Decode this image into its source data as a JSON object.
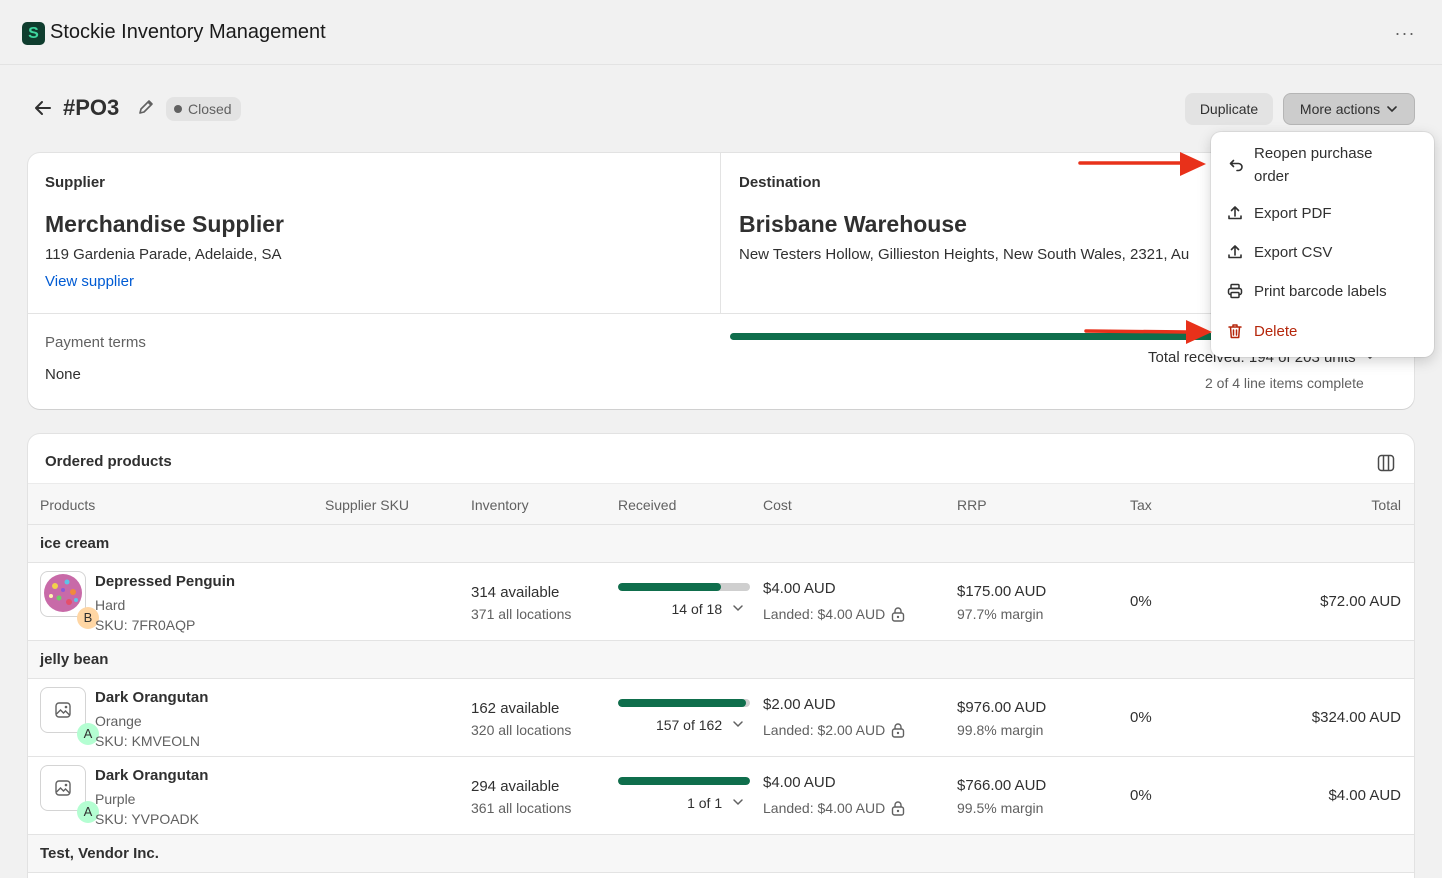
{
  "app": {
    "title": "Stockie Inventory Management",
    "logo_letter": "S",
    "menu_glyph": "···"
  },
  "header": {
    "po_number": "#PO3",
    "status": "Closed",
    "duplicate_label": "Duplicate",
    "more_actions_label": "More actions"
  },
  "supplier": {
    "heading": "Supplier",
    "name": "Merchandise Supplier",
    "address": "119 Gardenia Parade, Adelaide, SA",
    "link": "View supplier"
  },
  "destination": {
    "heading": "Destination",
    "name": "Brisbane Warehouse",
    "address": "New Testers Hollow, Gillieston Heights, New South Wales, 2321, Au"
  },
  "payment": {
    "heading": "Payment terms",
    "value": "None"
  },
  "receiving": {
    "total_received": "Total received: 194 of 203 units",
    "lines_complete": "2 of 4 line items complete",
    "progress": 0.956
  },
  "products": {
    "heading": "Ordered products",
    "columns": [
      "Products",
      "Supplier SKU",
      "Inventory",
      "Received",
      "Cost",
      "RRP",
      "Tax",
      "Total"
    ],
    "groups": [
      {
        "label": "ice cream"
      },
      {
        "label": "jelly bean"
      },
      {
        "label": "Test, Vendor Inc."
      }
    ],
    "rows": [
      {
        "name": "Depressed Penguin",
        "variant": "Hard",
        "sku": "SKU: 7FR0AQP",
        "badge": "B",
        "badge_color": "#ffd6a4",
        "available": "314 available",
        "all_locations": "371 all locations",
        "received_text": "14 of 18",
        "received_fraction": 0.78,
        "cost": "$4.00 AUD",
        "landed": "Landed: $4.00 AUD",
        "rrp": "$175.00 AUD",
        "margin": "97.7% margin",
        "tax": "0%",
        "total": "$72.00 AUD"
      },
      {
        "name": "Dark Orangutan",
        "variant": "Orange",
        "sku": "SKU: KMVEOLN",
        "badge": "A",
        "badge_color": "#b4fed2",
        "available": "162 available",
        "all_locations": "320 all locations",
        "received_text": "157 of 162",
        "received_fraction": 0.97,
        "cost": "$2.00 AUD",
        "landed": "Landed: $2.00 AUD",
        "rrp": "$976.00 AUD",
        "margin": "99.8% margin",
        "tax": "0%",
        "total": "$324.00 AUD"
      },
      {
        "name": "Dark Orangutan",
        "variant": "Purple",
        "sku": "SKU: YVPOADK",
        "badge": "A",
        "badge_color": "#b4fed2",
        "available": "294 available",
        "all_locations": "361 all locations",
        "received_text": "1 of 1",
        "received_fraction": 1.0,
        "cost": "$4.00 AUD",
        "landed": "Landed: $4.00 AUD",
        "rrp": "$766.00 AUD",
        "margin": "99.5% margin",
        "tax": "0%",
        "total": "$4.00 AUD"
      }
    ]
  },
  "menu": {
    "reopen_line1": "Reopen purchase",
    "reopen_line2": "order",
    "export_pdf": "Export PDF",
    "export_csv": "Export CSV",
    "print_labels": "Print barcode labels",
    "delete": "Delete"
  },
  "colors": {
    "accent_green": "#0f6e4c",
    "danger": "#b5260b",
    "link": "#005bd3",
    "arrow": "#e8311a"
  },
  "icons": [
    "back-arrow-icon",
    "pencil-icon",
    "chevron-down-icon",
    "columns-icon",
    "lock-icon",
    "reopen-icon",
    "upload-icon",
    "printer-icon",
    "trash-icon",
    "image-placeholder-icon"
  ]
}
